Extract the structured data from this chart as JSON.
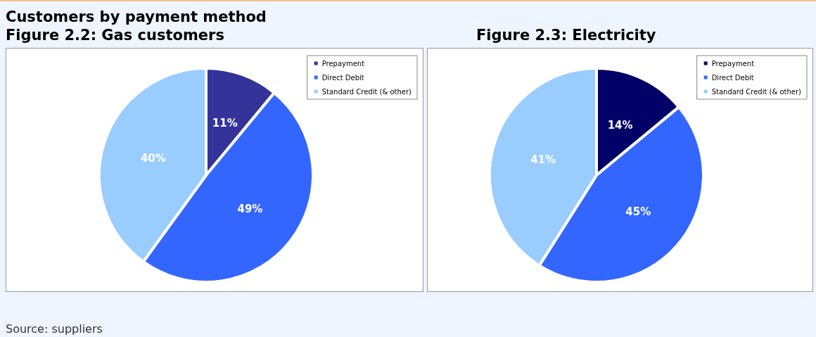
{
  "chart_data": [
    {
      "type": "pie",
      "title": "Customers by payment method",
      "subtitle": "Figure 2.2: Gas customers",
      "categories": [
        "Prepayment",
        "Direct Debit",
        "Standard Credit (& other)"
      ],
      "values": [
        11,
        49,
        40
      ],
      "colors": [
        "#333399",
        "#3366ff",
        "#99ccff"
      ],
      "value_labels": [
        "11%",
        "49%",
        "40%"
      ],
      "legend": "top right"
    },
    {
      "type": "pie",
      "subtitle": "Figure 2.3: Electricity",
      "categories": [
        "Prepayment",
        "Direct Debit",
        "Standard Credit (& other)"
      ],
      "values": [
        14,
        45,
        41
      ],
      "colors": [
        "#000066",
        "#3366ff",
        "#99ccff"
      ],
      "value_labels": [
        "14%",
        "45%",
        "41%"
      ],
      "legend": "top right",
      "annotations": [
        "Source: suppliers"
      ]
    }
  ]
}
